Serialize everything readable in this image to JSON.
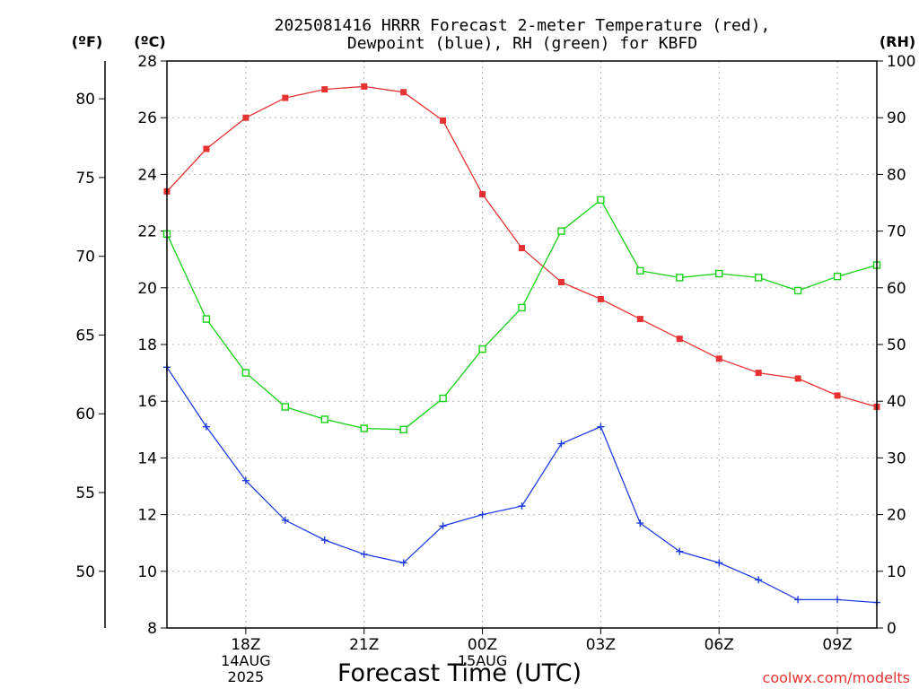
{
  "chart_data": {
    "type": "line",
    "title_line1": "2025081416 HRRR Forecast 2-meter Temperature (red),",
    "title_line2": "Dewpoint (blue), RH (green) for KBFD",
    "xlabel": "Forecast Time (UTC)",
    "credit": "coolwx.com/modelts",
    "unit_f": "(ºF)",
    "unit_c": "(ºC)",
    "unit_rh": "(RH)",
    "x_hours": [
      16,
      17,
      18,
      19,
      20,
      21,
      22,
      23,
      24,
      25,
      26,
      27,
      28,
      29,
      30,
      31,
      32,
      33,
      34
    ],
    "x_ticks": [
      {
        "hour": 18,
        "label": "18Z",
        "date": "14AUG",
        "year": "2025"
      },
      {
        "hour": 21,
        "label": "21Z"
      },
      {
        "hour": 24,
        "label": "00Z",
        "date": "15AUG"
      },
      {
        "hour": 27,
        "label": "03Z"
      },
      {
        "hour": 30,
        "label": "06Z"
      },
      {
        "hour": 33,
        "label": "09Z"
      }
    ],
    "ylim_c": [
      8,
      28
    ],
    "yticks_c": [
      8,
      10,
      12,
      14,
      16,
      18,
      20,
      22,
      24,
      26,
      28
    ],
    "ylim_f": [
      46.4,
      82.4
    ],
    "yticks_f": [
      50,
      55,
      60,
      65,
      70,
      75,
      80
    ],
    "ylim_rh": [
      0,
      100
    ],
    "yticks_rh": [
      0,
      10,
      20,
      30,
      40,
      50,
      60,
      70,
      80,
      90,
      100
    ],
    "grid": true,
    "series": [
      {
        "key": "temperature",
        "axis": "c",
        "color": "#e63232",
        "marker": "filled-square",
        "values": [
          23.4,
          24.9,
          26.0,
          26.7,
          27.0,
          27.1,
          26.9,
          25.9,
          23.3,
          21.4,
          20.2,
          19.6,
          18.9,
          18.2,
          17.5,
          17.0,
          16.8,
          16.2,
          15.8
        ]
      },
      {
        "key": "dewpoint",
        "axis": "c",
        "color": "#1e3ce6",
        "marker": "plus",
        "values": [
          17.2,
          15.1,
          13.2,
          11.8,
          11.1,
          10.6,
          10.3,
          11.6,
          12.0,
          12.3,
          14.5,
          15.1,
          11.7,
          10.7,
          10.3,
          9.7,
          9.0,
          9.0,
          8.9
        ]
      },
      {
        "key": "rh",
        "axis": "rh",
        "color": "#14d214",
        "marker": "open-square",
        "values": [
          69.5,
          54.5,
          45.0,
          39.0,
          36.8,
          35.2,
          35.0,
          40.5,
          49.2,
          56.5,
          70.0,
          75.5,
          63.0,
          61.8,
          62.5,
          61.8,
          59.5,
          62.0,
          64.0
        ]
      }
    ]
  }
}
